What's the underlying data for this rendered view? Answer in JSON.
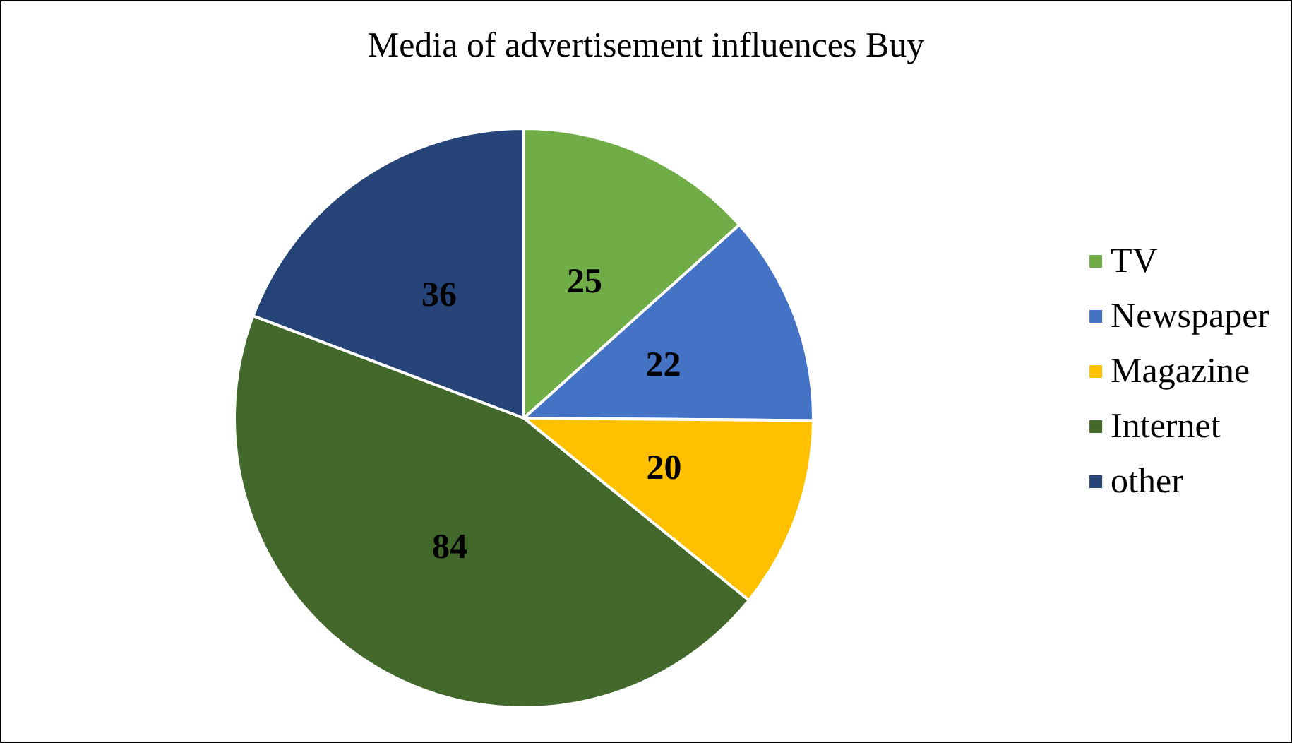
{
  "chart_data": {
    "type": "pie",
    "title": "Media of advertisement influences Buy",
    "categories": [
      "TV",
      "Newspaper",
      "Magazine",
      "Internet",
      "other"
    ],
    "values": [
      25,
      22,
      20,
      84,
      36
    ],
    "colors": [
      "#70ad47",
      "#4472c4",
      "#ffc000",
      "#43682b",
      "#264478"
    ],
    "data_labels": true,
    "legend": "right"
  }
}
